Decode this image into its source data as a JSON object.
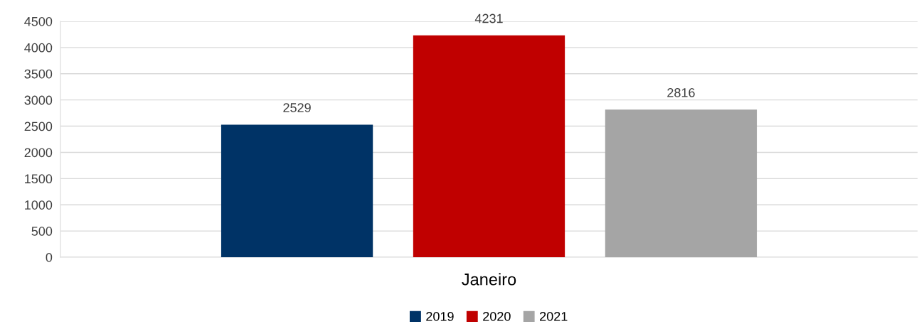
{
  "chart_data": {
    "type": "bar",
    "categories": [
      "Janeiro"
    ],
    "series": [
      {
        "name": "2019",
        "color": "#003366",
        "values": [
          2529
        ]
      },
      {
        "name": "2020",
        "color": "#c00000",
        "values": [
          4231
        ]
      },
      {
        "name": "2021",
        "color": "#a5a5a5",
        "values": [
          2816
        ]
      }
    ],
    "ylim": [
      0,
      4500
    ],
    "yticks": [
      0,
      500,
      1000,
      1500,
      2000,
      2500,
      3000,
      3500,
      4000,
      4500
    ],
    "grid": "y",
    "legend": "bottom",
    "data_labels": true
  }
}
